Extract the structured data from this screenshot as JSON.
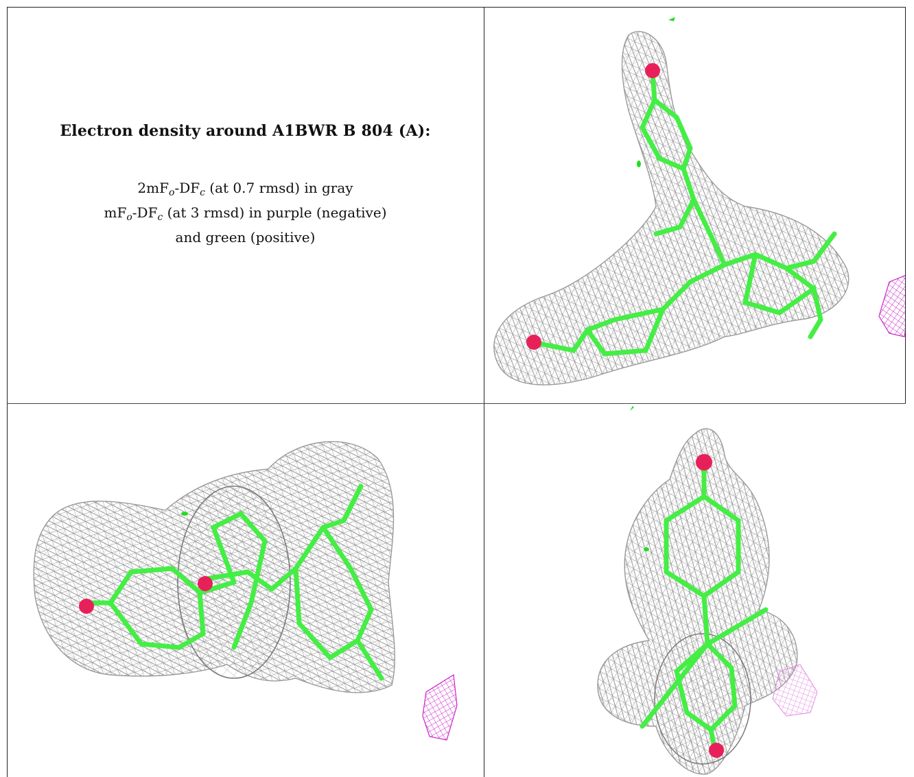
{
  "legend": {
    "title": "Electron density around A1BWR B 804 (A):",
    "line1": {
      "prefix": "2mF",
      "sub1": "o",
      "mid": "-DF",
      "sub2": "c",
      "suffix": " (at 0.7 rmsd) in gray"
    },
    "line2": {
      "prefix": "mF",
      "sub1": "o",
      "mid": "-DF",
      "sub2": "c",
      "suffix": " (at 3 rmsd) in purple (negative)"
    },
    "line3": "and green (positive)"
  },
  "colors": {
    "mesh_2fofc": "#8c8c8c",
    "stick": "#44ee44",
    "oxygen": "#e8205a",
    "negative": "#cc22cc",
    "positive": "#22dd22",
    "border": "#222222"
  },
  "panels": [
    {
      "view": "view-1",
      "position": "top-right"
    },
    {
      "view": "view-2",
      "position": "bottom-left"
    },
    {
      "view": "view-3",
      "position": "bottom-right"
    }
  ]
}
